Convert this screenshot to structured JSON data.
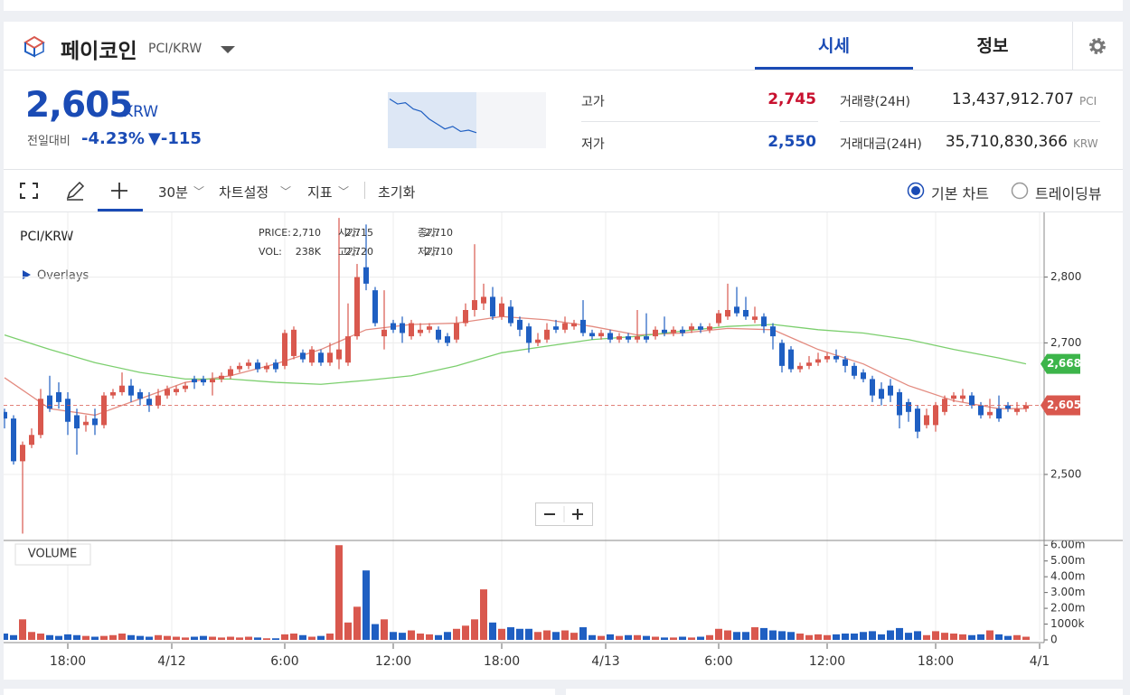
{
  "header": {
    "name": "페이코인",
    "pair": "PCI/KRW",
    "tabs": [
      "시세",
      "정보"
    ]
  },
  "price": {
    "value": "2,605",
    "unit": "KRW",
    "change_label": "전일대비",
    "change_pct": "-4.23%",
    "change_abs": "▼-115",
    "sparkline": {
      "values": [
        2740,
        2720,
        2725,
        2700,
        2690,
        2660,
        2640,
        2620,
        2630,
        2610,
        2615,
        2605
      ],
      "ylim": [
        2550,
        2760
      ],
      "color": "#1f5fc2"
    }
  },
  "stats": [
    {
      "label": "고가",
      "value": "2,745"
    },
    {
      "label": "저가",
      "value": "2,550"
    },
    {
      "label": "거래량(24H)",
      "value": "13,437,912.707",
      "unit": "PCI"
    },
    {
      "label": "거래대금(24H)",
      "value": "35,710,830,366",
      "unit": "KRW"
    }
  ],
  "toolbar": {
    "items": [
      "30분",
      "차트설정",
      "지표",
      "초기화"
    ],
    "radios": [
      "기본 차트",
      "트레이딩뷰"
    ]
  },
  "chart_data": {
    "type": "candlestick",
    "title": "PCI/KRW",
    "overlays": "Overlays",
    "volume_title": "VOLUME",
    "info": [
      {
        "label": "PRICE:",
        "value": "2,710"
      },
      {
        "label": "시가:",
        "value": "2,715"
      },
      {
        "label": "종가:",
        "value": "2,710"
      },
      {
        "label": "VOL:",
        "value": "238K"
      },
      {
        "label": "고가:",
        "value": "2,720"
      },
      {
        "label": "저가:",
        "value": "2,710"
      }
    ],
    "up_color": "#d9584e",
    "down_color": "#1f5fc2",
    "open": [
      2595,
      2585,
      2520,
      2545,
      2560,
      2620,
      2625,
      2615,
      2590,
      2575,
      2585,
      2575,
      2620,
      2625,
      2635,
      2625,
      2615,
      2605,
      2620,
      2625,
      2630,
      2645,
      2645,
      2640,
      2645,
      2650,
      2660,
      2665,
      2670,
      2660,
      2670,
      2665,
      2680,
      2685,
      2670,
      2685,
      2670,
      2675,
      2670,
      2710,
      2815,
      2780,
      2710,
      2730,
      2730,
      2710,
      2715,
      2720,
      2720,
      2710,
      2705,
      2730,
      2750,
      2760,
      2770,
      2740,
      2755,
      2735,
      2725,
      2700,
      2705,
      2725,
      2720,
      2725,
      2735,
      2715,
      2710,
      2715,
      2705,
      2710,
      2705,
      2710,
      2710,
      2720,
      2715,
      2720,
      2720,
      2725,
      2720,
      2730,
      2740,
      2755,
      2750,
      2735,
      2740,
      2725,
      2700,
      2690,
      2660,
      2665,
      2670,
      2675,
      2680,
      2675,
      2665,
      2655,
      2645,
      2630,
      2635,
      2625,
      2610,
      2600,
      2575,
      2575,
      2595,
      2615,
      2615,
      2620,
      2605,
      2590,
      2600,
      2605,
      2595,
      2600
    ],
    "high": [
      2600,
      2590,
      2550,
      2570,
      2630,
      2650,
      2640,
      2625,
      2600,
      2590,
      2600,
      2625,
      2630,
      2655,
      2645,
      2630,
      2625,
      2630,
      2635,
      2635,
      2640,
      2650,
      2650,
      2655,
      2655,
      2665,
      2670,
      2675,
      2675,
      2670,
      2675,
      2720,
      2725,
      2690,
      2695,
      2690,
      2700,
      2890,
      2760,
      2820,
      2880,
      2785,
      2780,
      2735,
      2740,
      2735,
      2730,
      2730,
      2725,
      2715,
      2740,
      2760,
      2850,
      2790,
      2785,
      2770,
      2765,
      2740,
      2730,
      2715,
      2730,
      2735,
      2740,
      2735,
      2765,
      2720,
      2720,
      2720,
      2715,
      2715,
      2750,
      2745,
      2725,
      2740,
      2725,
      2725,
      2730,
      2730,
      2730,
      2750,
      2790,
      2785,
      2770,
      2755,
      2745,
      2730,
      2705,
      2695,
      2670,
      2680,
      2685,
      2685,
      2690,
      2680,
      2670,
      2660,
      2650,
      2640,
      2645,
      2630,
      2615,
      2605,
      2600,
      2610,
      2620,
      2625,
      2630,
      2625,
      2610,
      2615,
      2620,
      2610,
      2610,
      2610
    ],
    "low": [
      2570,
      2515,
      2410,
      2540,
      2555,
      2595,
      2600,
      2560,
      2530,
      2565,
      2560,
      2570,
      2615,
      2620,
      2610,
      2605,
      2595,
      2600,
      2615,
      2620,
      2625,
      2630,
      2635,
      2620,
      2640,
      2645,
      2655,
      2660,
      2655,
      2655,
      2655,
      2660,
      2675,
      2670,
      2665,
      2665,
      2665,
      2660,
      2665,
      2705,
      2780,
      2725,
      2690,
      2715,
      2700,
      2705,
      2710,
      2715,
      2700,
      2695,
      2700,
      2725,
      2740,
      2750,
      2735,
      2735,
      2725,
      2710,
      2685,
      2695,
      2700,
      2715,
      2715,
      2720,
      2710,
      2705,
      2705,
      2700,
      2700,
      2700,
      2700,
      2700,
      2705,
      2710,
      2710,
      2710,
      2715,
      2715,
      2715,
      2725,
      2735,
      2740,
      2735,
      2730,
      2715,
      2690,
      2655,
      2655,
      2655,
      2660,
      2665,
      2670,
      2670,
      2655,
      2645,
      2640,
      2610,
      2605,
      2610,
      2570,
      2580,
      2555,
      2570,
      2565,
      2590,
      2610,
      2610,
      2600,
      2585,
      2585,
      2580,
      2595,
      2590,
      2595
    ],
    "close": [
      2585,
      2520,
      2545,
      2560,
      2615,
      2600,
      2610,
      2580,
      2570,
      2580,
      2575,
      2620,
      2625,
      2635,
      2620,
      2615,
      2605,
      2620,
      2630,
      2630,
      2635,
      2640,
      2640,
      2645,
      2650,
      2660,
      2665,
      2670,
      2660,
      2665,
      2660,
      2715,
      2720,
      2675,
      2690,
      2670,
      2685,
      2690,
      2710,
      2800,
      2790,
      2730,
      2720,
      2720,
      2715,
      2730,
      2720,
      2725,
      2705,
      2700,
      2730,
      2750,
      2765,
      2770,
      2740,
      2760,
      2730,
      2720,
      2700,
      2705,
      2720,
      2720,
      2730,
      2730,
      2715,
      2710,
      2715,
      2705,
      2710,
      2705,
      2710,
      2705,
      2720,
      2715,
      2720,
      2715,
      2725,
      2720,
      2725,
      2745,
      2750,
      2745,
      2740,
      2740,
      2725,
      2710,
      2665,
      2660,
      2665,
      2670,
      2675,
      2680,
      2675,
      2665,
      2650,
      2645,
      2620,
      2615,
      2620,
      2590,
      2595,
      2565,
      2590,
      2605,
      2615,
      2620,
      2620,
      2605,
      2590,
      2595,
      2585,
      2600,
      2600,
      2605
    ],
    "volume": [
      400000,
      300000,
      1300000,
      500000,
      400000,
      300000,
      250000,
      350000,
      300000,
      250000,
      200000,
      250000,
      300000,
      400000,
      300000,
      250000,
      200000,
      300000,
      250000,
      200000,
      150000,
      200000,
      250000,
      200000,
      150000,
      200000,
      150000,
      200000,
      150000,
      100000,
      100000,
      350000,
      400000,
      300000,
      200000,
      250000,
      400000,
      6000000,
      1100000,
      2100000,
      4400000,
      1000000,
      1300000,
      500000,
      450000,
      600000,
      400000,
      350000,
      300000,
      500000,
      700000,
      900000,
      1300000,
      3200000,
      1100000,
      700000,
      800000,
      700000,
      700000,
      500000,
      600000,
      500000,
      600000,
      450000,
      800000,
      300000,
      250000,
      350000,
      250000,
      300000,
      300000,
      250000,
      200000,
      150000,
      150000,
      200000,
      150000,
      200000,
      300000,
      700000,
      600000,
      500000,
      500000,
      800000,
      750000,
      600000,
      550000,
      500000,
      400000,
      300000,
      350000,
      300000,
      350000,
      400000,
      400000,
      500000,
      550000,
      350000,
      600000,
      750000,
      450000,
      550000,
      300000,
      550000,
      450000,
      400000,
      350000,
      300000,
      350000,
      600000,
      350000,
      250000,
      300000,
      200000
    ],
    "ylim": [
      2401,
      2897
    ],
    "yticks": [
      {
        "value": 2800,
        "label": "2,800"
      },
      {
        "value": 2700,
        "label": "2,700"
      },
      {
        "value": 2500,
        "label": "2,500"
      }
    ],
    "volume_ylim": [
      0,
      6300000
    ],
    "volume_ticks": [
      {
        "value": 6000000,
        "label": "6.00m"
      },
      {
        "value": 5000000,
        "label": "5.00m"
      },
      {
        "value": 4000000,
        "label": "4.00m"
      },
      {
        "value": 3000000,
        "label": "3.00m"
      },
      {
        "value": 2000000,
        "label": "2.00m"
      },
      {
        "value": 1000000,
        "label": "1000k"
      },
      0
    ],
    "xticks": [
      {
        "value": 7,
        "label": "18:00"
      },
      {
        "value": 18.5,
        "label": "4/12"
      },
      {
        "value": 31,
        "label": "6:00"
      },
      {
        "value": 43,
        "label": "12:00"
      },
      {
        "value": 55,
        "label": "18:00"
      },
      {
        "value": 66.5,
        "label": "4/13"
      },
      {
        "value": 79,
        "label": "6:00"
      },
      {
        "value": 91,
        "label": "12:00"
      },
      {
        "value": 103,
        "label": "18:00"
      },
      {
        "value": 114.5,
        "label": "4/1"
      }
    ],
    "ma_lines": [
      {
        "color": "#e38b80",
        "x": [
          0,
          5,
          10,
          15,
          20,
          25,
          30,
          35,
          40,
          45,
          50,
          55,
          60,
          65,
          70,
          75,
          80,
          85,
          90,
          95,
          100,
          105,
          110,
          113
        ],
        "values": [
          2647,
          2600,
          2590,
          2615,
          2640,
          2650,
          2668,
          2690,
          2720,
          2728,
          2730,
          2740,
          2735,
          2725,
          2712,
          2715,
          2722,
          2720,
          2690,
          2668,
          2635,
          2612,
          2600,
          2600
        ]
      },
      {
        "color": "#7ccf6e",
        "x": [
          0,
          5,
          10,
          15,
          20,
          25,
          30,
          35,
          40,
          45,
          50,
          55,
          60,
          65,
          70,
          75,
          80,
          85,
          90,
          95,
          100,
          105,
          110,
          113
        ],
        "values": [
          2712,
          2690,
          2670,
          2655,
          2645,
          2645,
          2640,
          2637,
          2643,
          2650,
          2665,
          2685,
          2695,
          2705,
          2710,
          2718,
          2725,
          2728,
          2720,
          2715,
          2705,
          2690,
          2677,
          2668
        ]
      }
    ],
    "price_tags": [
      {
        "value": 2668,
        "label": "2,668",
        "color": "#3cb54a"
      },
      {
        "value": 2605,
        "label": "2,605",
        "color": "#d9584e"
      }
    ],
    "grid": true
  }
}
